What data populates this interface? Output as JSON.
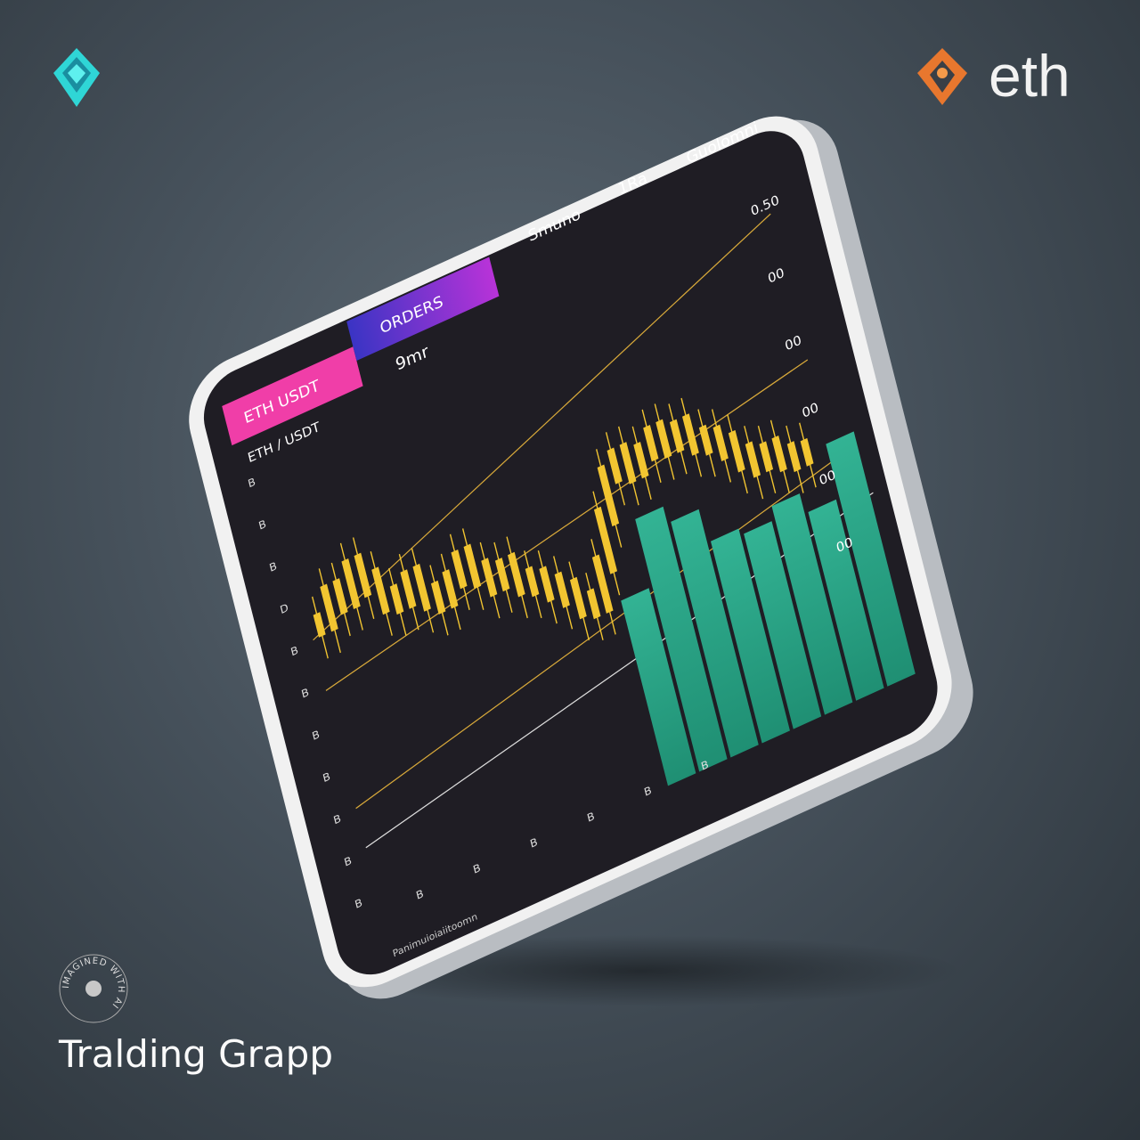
{
  "brand": {
    "right_logo_text": "eth",
    "colors": {
      "left_logo": "#2fd6d6",
      "right_logo": "#e8772e"
    }
  },
  "caption": {
    "title": "Tralding Grapp"
  },
  "watermark": {
    "text": "IMAGINED WITH AI"
  },
  "tablet": {
    "tabs": [
      {
        "label": "ETH USDT",
        "color": "#f03ea8"
      },
      {
        "label": "ORDERS",
        "color": "#5a3bd0"
      }
    ],
    "header_labels": [
      "Smuno",
      "1Ra",
      "Guolomni"
    ],
    "sub_label": "9mr",
    "pair_label": "ETH / USDT",
    "right_axis_labels": [
      "0.50",
      "00",
      "00",
      "00",
      "00",
      "00"
    ],
    "left_axis_labels": [
      "B",
      "B",
      "B",
      "D",
      "B",
      "B",
      "B",
      "B",
      "B",
      "B",
      "B"
    ],
    "bottom_axis_labels": [
      "B",
      "B",
      "B",
      "B",
      "B",
      "B"
    ],
    "footer_label": "Panimuioiaiitoomn",
    "colors": {
      "candle": "#f2c531",
      "volume": "#2fae8c",
      "screen": "#1f1d24",
      "line": "#d8a93a"
    },
    "candles": [
      62,
      70,
      66,
      75,
      68,
      60,
      58,
      63,
      55,
      52,
      57,
      62,
      55,
      50,
      53,
      46,
      44,
      40,
      36,
      30,
      28,
      40,
      55,
      68,
      72,
      66,
      70,
      74,
      69,
      72,
      66,
      64,
      60,
      54,
      50,
      52,
      48,
      46,
      47
    ],
    "volume_bars": [
      55,
      75,
      70,
      60,
      58,
      62,
      56,
      72
    ]
  }
}
